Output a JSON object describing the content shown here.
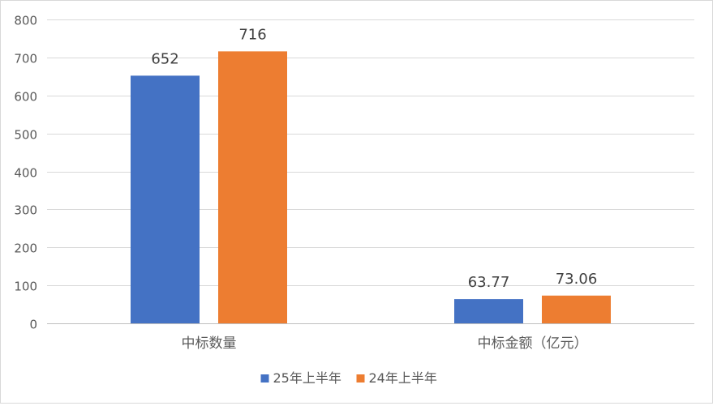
{
  "chart_data": {
    "type": "bar",
    "categories": [
      "中标数量",
      "中标金额（亿元）"
    ],
    "series": [
      {
        "name": "25年上半年",
        "values": [
          652,
          63.77
        ],
        "labels": [
          "652",
          "63.77"
        ],
        "color": "#4472C4"
      },
      {
        "name": "24年上半年",
        "values": [
          716,
          73.06
        ],
        "labels": [
          "716",
          "73.06"
        ],
        "color": "#ED7D31"
      }
    ],
    "ylim": [
      0,
      800
    ],
    "yticks": [
      "0",
      "100",
      "200",
      "300",
      "400",
      "500",
      "600",
      "700",
      "800"
    ],
    "grid": true,
    "legend": "bottom",
    "title": "",
    "xlabel": "",
    "ylabel": ""
  }
}
